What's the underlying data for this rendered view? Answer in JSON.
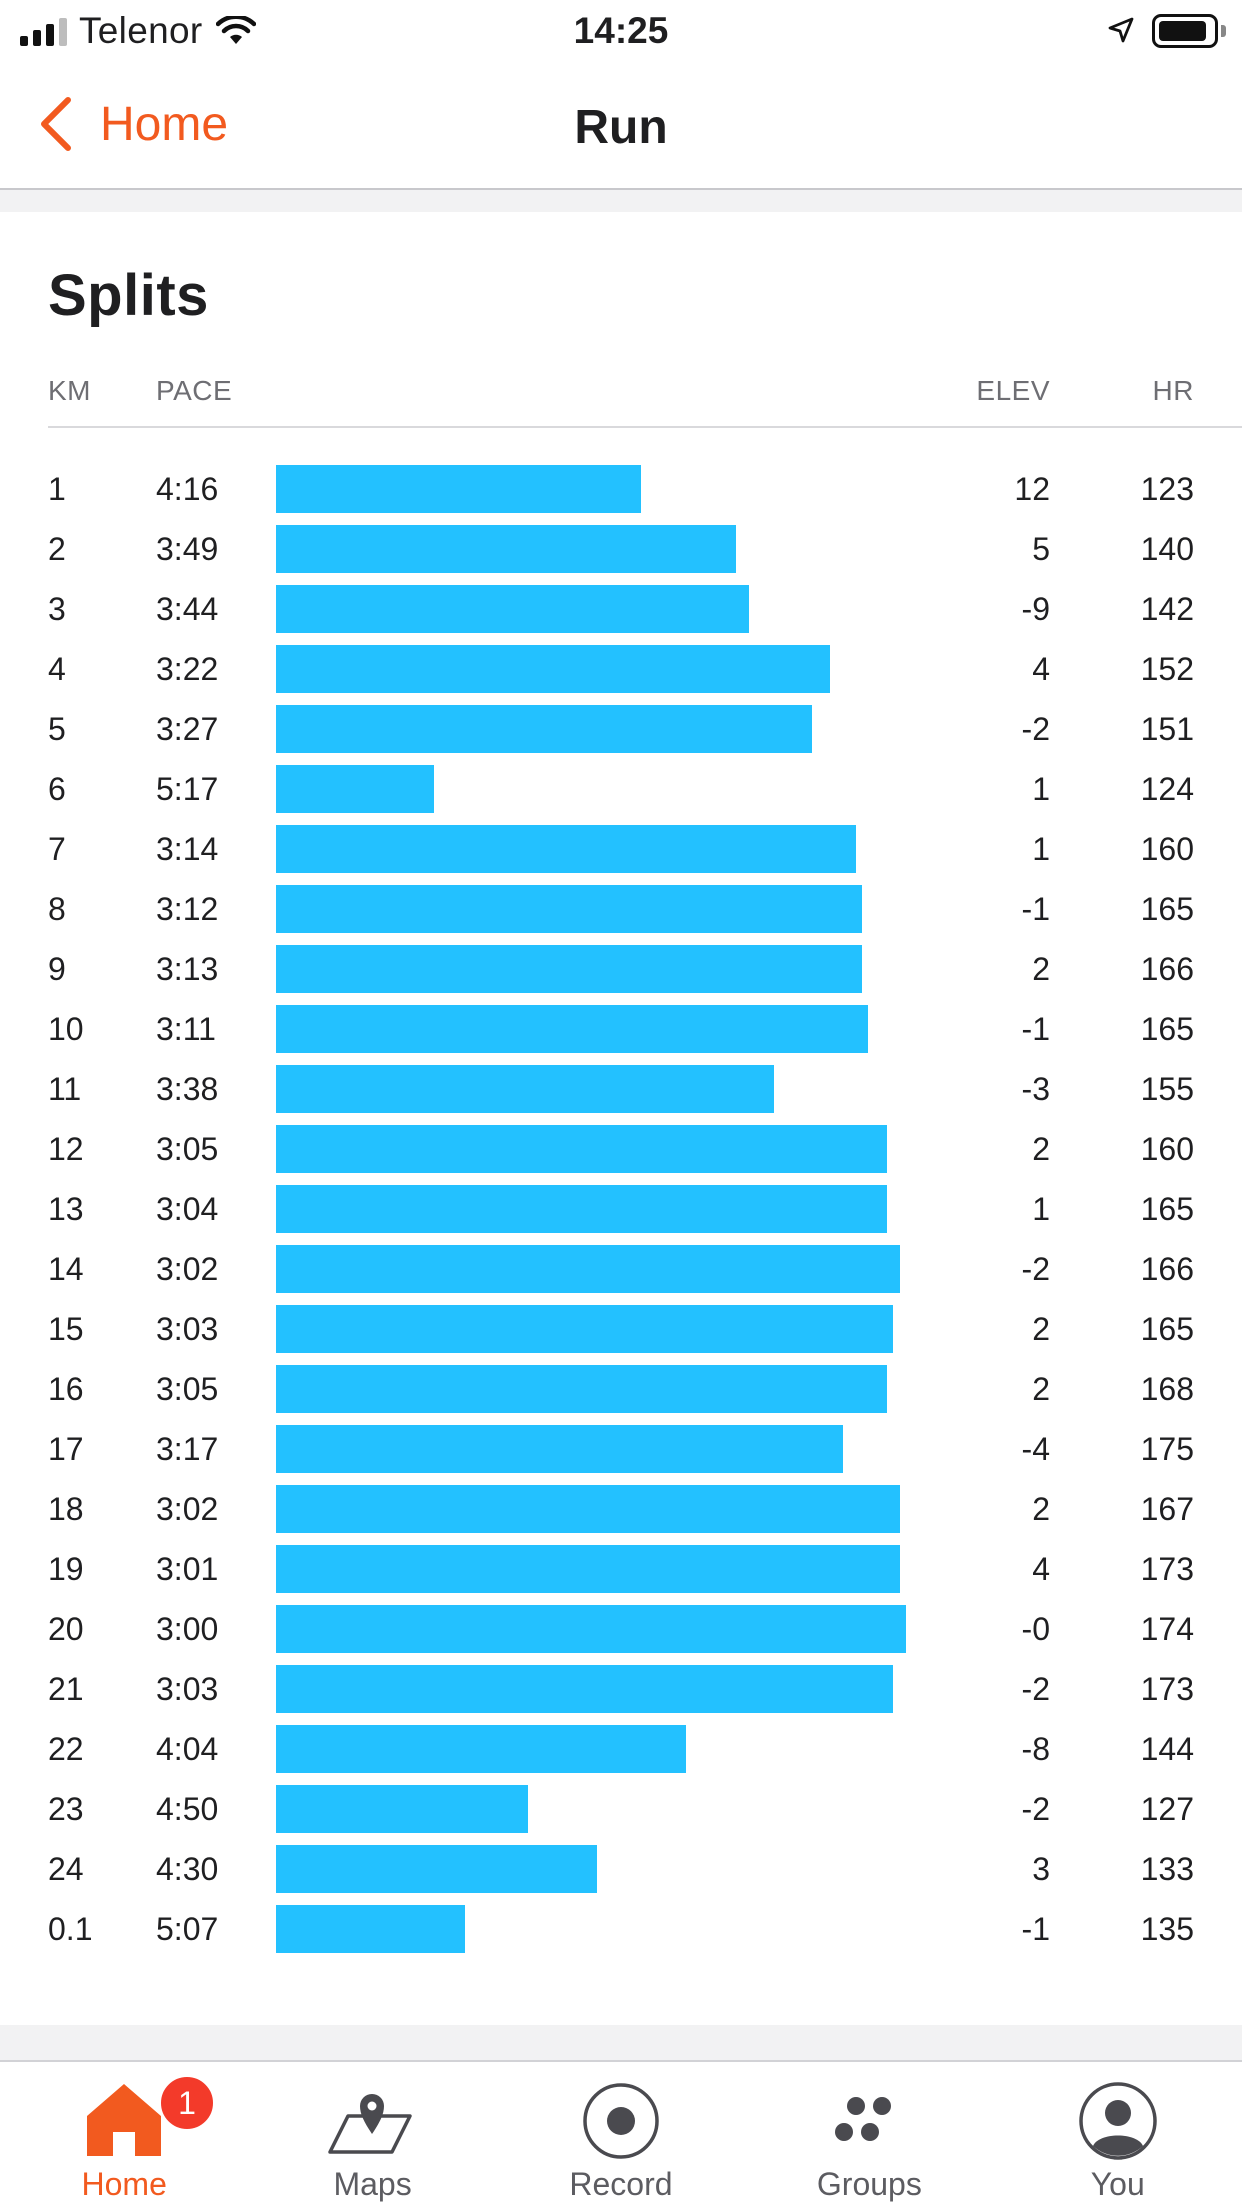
{
  "status_bar": {
    "carrier": "Telenor",
    "time": "14:25",
    "signal_bars_active": 3,
    "signal_bars_total": 4,
    "icons": [
      "wifi-icon",
      "location-arrow-icon",
      "battery-icon"
    ]
  },
  "nav": {
    "back_label": "Home",
    "title": "Run",
    "accent_color": "#f25a1f"
  },
  "splits": {
    "title": "Splits",
    "headers": {
      "km": "KM",
      "pace": "PACE",
      "elev": "ELEV",
      "hr": "HR"
    },
    "bar_color": "#23c1ff",
    "rows": [
      {
        "km": "1",
        "pace": "4:16",
        "elev": "12",
        "hr": "123",
        "bar": 0.58
      },
      {
        "km": "2",
        "pace": "3:49",
        "elev": "5",
        "hr": "140",
        "bar": 0.73
      },
      {
        "km": "3",
        "pace": "3:44",
        "elev": "-9",
        "hr": "142",
        "bar": 0.75
      },
      {
        "km": "4",
        "pace": "3:22",
        "elev": "4",
        "hr": "152",
        "bar": 0.88
      },
      {
        "km": "5",
        "pace": "3:27",
        "elev": "-2",
        "hr": "151",
        "bar": 0.85
      },
      {
        "km": "6",
        "pace": "5:17",
        "elev": "1",
        "hr": "124",
        "bar": 0.25
      },
      {
        "km": "7",
        "pace": "3:14",
        "elev": "1",
        "hr": "160",
        "bar": 0.92
      },
      {
        "km": "8",
        "pace": "3:12",
        "elev": "-1",
        "hr": "165",
        "bar": 0.93
      },
      {
        "km": "9",
        "pace": "3:13",
        "elev": "2",
        "hr": "166",
        "bar": 0.93
      },
      {
        "km": "10",
        "pace": "3:11",
        "elev": "-1",
        "hr": "165",
        "bar": 0.94
      },
      {
        "km": "11",
        "pace": "3:38",
        "elev": "-3",
        "hr": "155",
        "bar": 0.79
      },
      {
        "km": "12",
        "pace": "3:05",
        "elev": "2",
        "hr": "160",
        "bar": 0.97
      },
      {
        "km": "13",
        "pace": "3:04",
        "elev": "1",
        "hr": "165",
        "bar": 0.97
      },
      {
        "km": "14",
        "pace": "3:02",
        "elev": "-2",
        "hr": "166",
        "bar": 0.99
      },
      {
        "km": "15",
        "pace": "3:03",
        "elev": "2",
        "hr": "165",
        "bar": 0.98
      },
      {
        "km": "16",
        "pace": "3:05",
        "elev": "2",
        "hr": "168",
        "bar": 0.97
      },
      {
        "km": "17",
        "pace": "3:17",
        "elev": "-4",
        "hr": "175",
        "bar": 0.9
      },
      {
        "km": "18",
        "pace": "3:02",
        "elev": "2",
        "hr": "167",
        "bar": 0.99
      },
      {
        "km": "19",
        "pace": "3:01",
        "elev": "4",
        "hr": "173",
        "bar": 0.99
      },
      {
        "km": "20",
        "pace": "3:00",
        "elev": "-0",
        "hr": "174",
        "bar": 1.0
      },
      {
        "km": "21",
        "pace": "3:03",
        "elev": "-2",
        "hr": "173",
        "bar": 0.98
      },
      {
        "km": "22",
        "pace": "4:04",
        "elev": "-8",
        "hr": "144",
        "bar": 0.65
      },
      {
        "km": "23",
        "pace": "4:50",
        "elev": "-2",
        "hr": "127",
        "bar": 0.4
      },
      {
        "km": "24",
        "pace": "4:30",
        "elev": "3",
        "hr": "133",
        "bar": 0.51
      },
      {
        "km": "0.1",
        "pace": "5:07",
        "elev": "-1",
        "hr": "135",
        "bar": 0.3
      }
    ]
  },
  "tab_bar": {
    "tabs": [
      {
        "label": "Home",
        "icon": "home-icon",
        "active": true,
        "badge": "1"
      },
      {
        "label": "Maps",
        "icon": "map-icon",
        "active": false
      },
      {
        "label": "Record",
        "icon": "record-icon",
        "active": false
      },
      {
        "label": "Groups",
        "icon": "groups-icon",
        "active": false
      },
      {
        "label": "You",
        "icon": "profile-icon",
        "active": false
      }
    ]
  }
}
